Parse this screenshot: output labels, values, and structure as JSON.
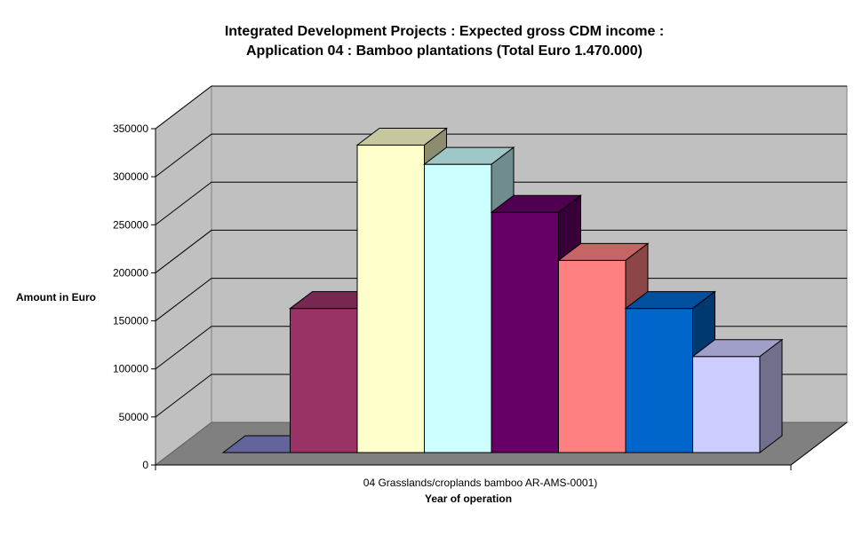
{
  "chart_data": {
    "type": "bar",
    "title_lines": [
      "Integrated Development Projects : Expected gross CDM income :",
      "Application 04 : Bamboo plantations (Total Euro 1.470.000)"
    ],
    "ylabel": "Amount in Euro",
    "xlabel": "Year of operation",
    "categories": [
      "04 Grasslands/croplands bamboo AR-AMS-0001)"
    ],
    "ylim": [
      0,
      350000
    ],
    "yticks": [
      0,
      50000,
      100000,
      150000,
      200000,
      250000,
      300000,
      350000
    ],
    "grid": true,
    "view": "3d-clustered",
    "series": [
      {
        "values": [
          0
        ],
        "color": "#8080c8"
      },
      {
        "values": [
          150000
        ],
        "color": "#993366"
      },
      {
        "values": [
          320000
        ],
        "color": "#ffffcc"
      },
      {
        "values": [
          300000
        ],
        "color": "#ccffff"
      },
      {
        "values": [
          250000
        ],
        "color": "#660066"
      },
      {
        "values": [
          200000
        ],
        "color": "#ff8080"
      },
      {
        "values": [
          150000
        ],
        "color": "#0066cc"
      },
      {
        "values": [
          100000
        ],
        "color": "#ccccff"
      }
    ],
    "colors": {
      "walls": "#c0c0c0",
      "floor": "#808080",
      "gridlines": "#000000"
    }
  }
}
